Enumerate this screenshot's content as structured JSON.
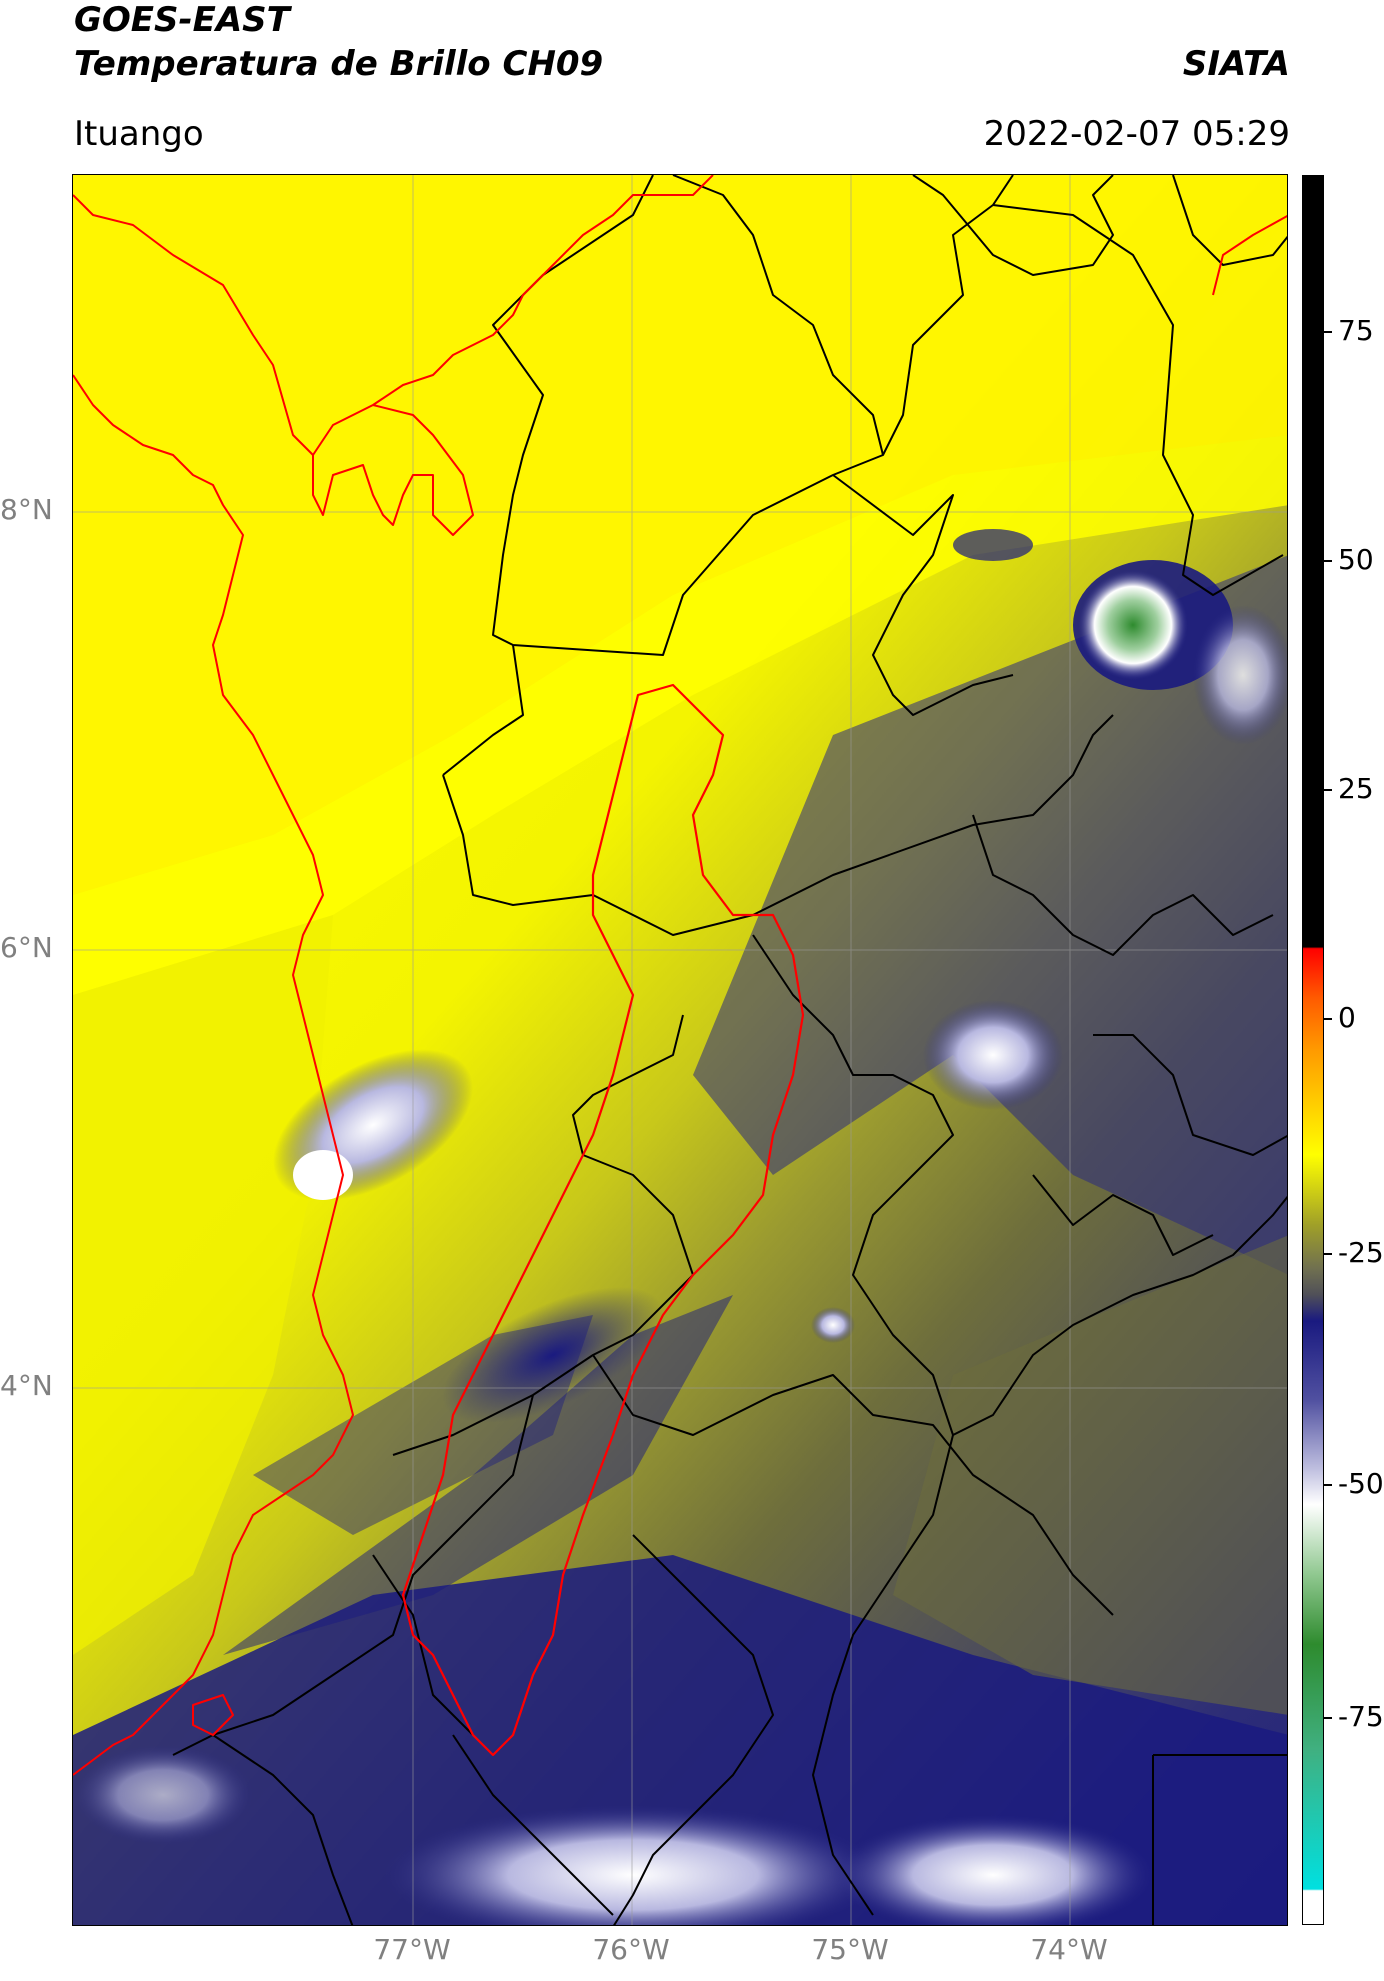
{
  "header": {
    "title": "GOES-EAST",
    "subtitle": "Temperatura de Brillo CH09",
    "organization": "SIATA",
    "location": "Ituango",
    "datetime": "2022-02-07 05:29"
  },
  "map": {
    "latitude_labels": [
      "8°N",
      "6°N",
      "4°N"
    ],
    "longitude_labels": [
      "77°W",
      "76°W",
      "75°W",
      "74°W"
    ],
    "gridlines": true,
    "watershed_outline_color": "#ff0000",
    "boundary_color": "#000000"
  },
  "colorbar": {
    "tick_labels": [
      "75",
      "50",
      "25",
      "0",
      "-25",
      "-50",
      "-75"
    ],
    "colors": {
      "warm_top": "#000000",
      "red": "#ff0000",
      "orange": "#ff8c00",
      "yellow": "#ffff00",
      "olive": "#808030",
      "gray": "#505058",
      "navy": "#1a1a80",
      "white": "#ffffff",
      "green": "#2e8b2e",
      "cyan": "#00e0e0"
    }
  }
}
